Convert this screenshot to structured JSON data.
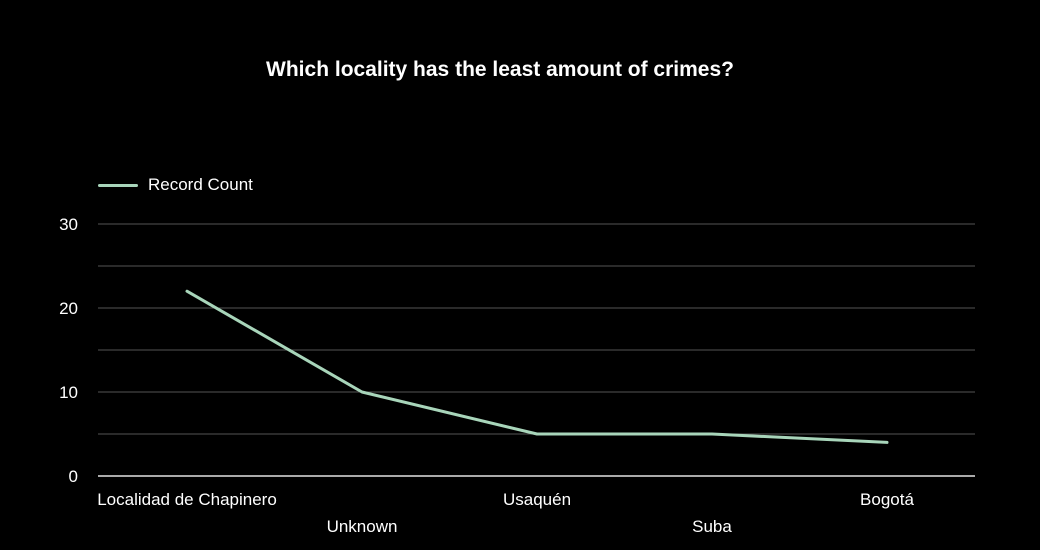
{
  "chart_data": {
    "type": "line",
    "title": "Which locality has the least amount of crimes?",
    "categories": [
      "Localidad de Chapinero",
      "Unknown",
      "Usaquén",
      "Suba",
      "Bogotá"
    ],
    "series": [
      {
        "name": "Record Count",
        "values": [
          22,
          10,
          5,
          5,
          4
        ],
        "color": "#a8d5ba"
      }
    ],
    "ylim": [
      0,
      30
    ],
    "yticks": [
      0,
      10,
      20,
      30
    ],
    "grid": true,
    "legend": "top-left",
    "colors": {
      "background": "#000000",
      "text": "#ffffff",
      "gridline": "#555555",
      "axis": "#aaaaaa"
    }
  }
}
